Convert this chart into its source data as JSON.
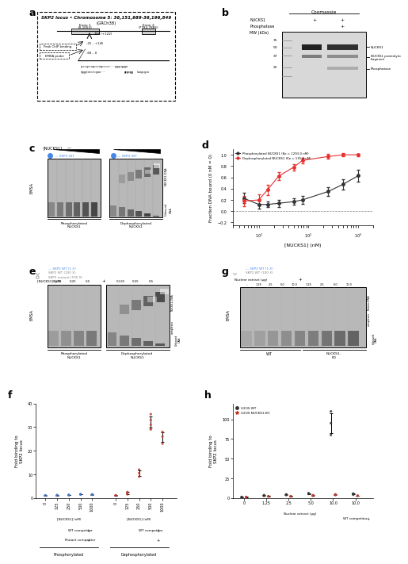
{
  "panel_d": {
    "xlabel": "[NUCKS1] (nM)",
    "ylabel": "Fraction DNA bound (0 nM = 0)",
    "legend1": "Phosphorylated NUCKS1 (Kᴅ = 1293.0 nM)",
    "legend2": "Dephosphorylated NUCKS1 (Kᴅ = 135.2 nM)",
    "log_x": [
      5,
      10,
      15,
      25,
      50,
      75,
      250,
      500,
      1000
    ],
    "phos_y": [
      0.23,
      0.12,
      0.12,
      0.14,
      0.17,
      0.2,
      0.35,
      0.48,
      0.63
    ],
    "phos_err": [
      0.09,
      0.07,
      0.05,
      0.06,
      0.06,
      0.07,
      0.08,
      0.09,
      0.1
    ],
    "dephos_y": [
      0.18,
      0.2,
      0.38,
      0.62,
      0.78,
      0.9,
      0.97,
      1.0,
      1.0
    ],
    "dephos_err": [
      0.09,
      0.1,
      0.09,
      0.07,
      0.06,
      0.05,
      0.04,
      0.03,
      0.02
    ],
    "ylim": [
      -0.25,
      1.1
    ],
    "color_phos": "#333333",
    "color_dephos": "#e63030"
  },
  "panel_f": {
    "ylabel": "Fold binding to\nSKP2 locus",
    "ylim": [
      0,
      40
    ],
    "color_blue": "#4472c4",
    "color_red": "#c0392b"
  },
  "panel_h": {
    "ylabel": "Fold binding to\nSKP2 locus",
    "ylim": [
      0,
      120
    ],
    "color_u2os": "#333333",
    "color_ko": "#c0392b",
    "legend1": "U2OS WT",
    "legend2": "U2OS NUCKS1-KO"
  },
  "bg_color": "#ffffff"
}
